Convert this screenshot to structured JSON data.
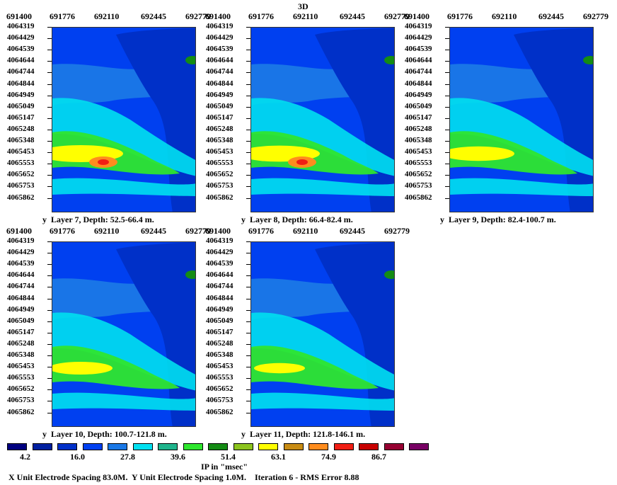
{
  "page": {
    "title": "3D"
  },
  "chart_data": {
    "type": "heatmap",
    "x_ticks": [
      "691400",
      "691776",
      "692110",
      "692445",
      "692779"
    ],
    "y_ticks": [
      "4064319",
      "4064429",
      "4064539",
      "4064644",
      "4064744",
      "4064844",
      "4064949",
      "4065049",
      "4065147",
      "4065248",
      "4065348",
      "4065453",
      "4065553",
      "4065652",
      "4065753",
      "4065862"
    ],
    "panels": [
      {
        "caption": "Layer 7, Depth: 52.5-66.4 m.",
        "axis_letter": "y",
        "peak_value": 86.7
      },
      {
        "caption": "Layer 8, Depth: 66.4-82.4 m.",
        "axis_letter": "y",
        "peak_value": 86.7
      },
      {
        "caption": "Layer 9, Depth: 82.4-100.7 m.",
        "axis_letter": "y",
        "peak_value": 74.9
      },
      {
        "caption": "Layer 10, Depth: 100.7-121.8 m.",
        "axis_letter": "y",
        "peak_value": 63.1
      },
      {
        "caption": "Layer 11, Depth: 121.8-146.1 m.",
        "axis_letter": "y",
        "peak_value": 51.4
      }
    ],
    "legend": {
      "colors": [
        "#000080",
        "#0020a0",
        "#0030c8",
        "#0040f0",
        "#1a78e6",
        "#00e0f0",
        "#1fb48c",
        "#2ee62e",
        "#148c14",
        "#8cc41e",
        "#ffff00",
        "#c88c14",
        "#ff8c1e",
        "#f01e14",
        "#c80000",
        "#960032",
        "#780064"
      ],
      "labels": [
        "4.2",
        "16.0",
        "27.8",
        "39.6",
        "51.4",
        "63.1",
        "74.9",
        "86.7"
      ],
      "title": "IP in \"msec\""
    }
  },
  "footer": {
    "text": "X Unit Electrode Spacing 83.0M.  Y Unit Electrode Spacing 1.0M.    Iteration 6 - RMS Error 8.88"
  }
}
